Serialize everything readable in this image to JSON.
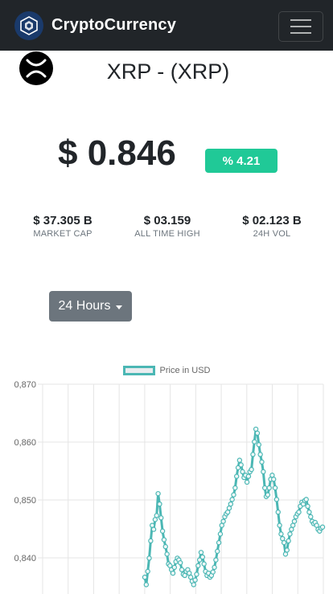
{
  "navbar": {
    "brand": "CryptoCurrency",
    "brand_logo_icon": "crypto-com-logo-icon",
    "menu_icon": "hamburger-menu-icon"
  },
  "coin": {
    "title": "XRP - (XRP)",
    "logo_icon": "xrp-logo-icon",
    "price": "$ 0.846",
    "change": "% 4.21",
    "change_color": "#20c997"
  },
  "stats": [
    {
      "value": "$ 37.305 B",
      "label": "MARKET CAP"
    },
    {
      "value": "$ 03.159",
      "label": "ALL TIME HIGH"
    },
    {
      "value": "$ 02.123 B",
      "label": "24H VOL"
    }
  ],
  "range_button": {
    "label": "24 Hours"
  },
  "chart_data": {
    "type": "line",
    "legend": [
      "Price in USD"
    ],
    "series": [
      {
        "name": "Price in USD",
        "color": "#4bb7b4",
        "values": [
          0.8365,
          0.8352,
          0.8375,
          0.8398,
          0.8428,
          0.8455,
          0.8448,
          0.8465,
          0.8472,
          0.851,
          0.8492,
          0.8468,
          0.8445,
          0.843,
          0.8418,
          0.8405,
          0.8388,
          0.8385,
          0.8378,
          0.8372,
          0.8382,
          0.8392,
          0.8398,
          0.8395,
          0.839,
          0.8378,
          0.837,
          0.8368,
          0.8375,
          0.8378,
          0.8372,
          0.8365,
          0.8358,
          0.8352,
          0.836,
          0.837,
          0.8385,
          0.8395,
          0.8408,
          0.84,
          0.8388,
          0.8375,
          0.8368,
          0.8372,
          0.8365,
          0.8368,
          0.8374,
          0.8382,
          0.8395,
          0.841,
          0.8425,
          0.844,
          0.8455,
          0.8462,
          0.847,
          0.8475,
          0.8478,
          0.8485,
          0.8492,
          0.85,
          0.8508,
          0.852,
          0.854,
          0.8555,
          0.8568,
          0.856,
          0.8548,
          0.8538,
          0.8542,
          0.853,
          0.854,
          0.8548,
          0.8552,
          0.8578,
          0.86,
          0.8622,
          0.8615,
          0.8595,
          0.8578,
          0.8565,
          0.8548,
          0.852,
          0.8505,
          0.8508,
          0.852,
          0.8535,
          0.8542,
          0.8535,
          0.852,
          0.85,
          0.8478,
          0.8455,
          0.844,
          0.8432,
          0.8425,
          0.8405,
          0.8412,
          0.8428,
          0.844,
          0.8448,
          0.8455,
          0.8462,
          0.847,
          0.8475,
          0.8478,
          0.8488,
          0.8495,
          0.8492,
          0.8498,
          0.85,
          0.8488,
          0.8478,
          0.847,
          0.8462,
          0.8458,
          0.846,
          0.8455,
          0.8448,
          0.8445,
          0.845,
          0.8452
        ]
      }
    ],
    "y_ticks": [
      "0,870",
      "0,860",
      "0,850",
      "0,840"
    ],
    "ylim": [
      0.834,
      0.87
    ],
    "grid": true
  }
}
